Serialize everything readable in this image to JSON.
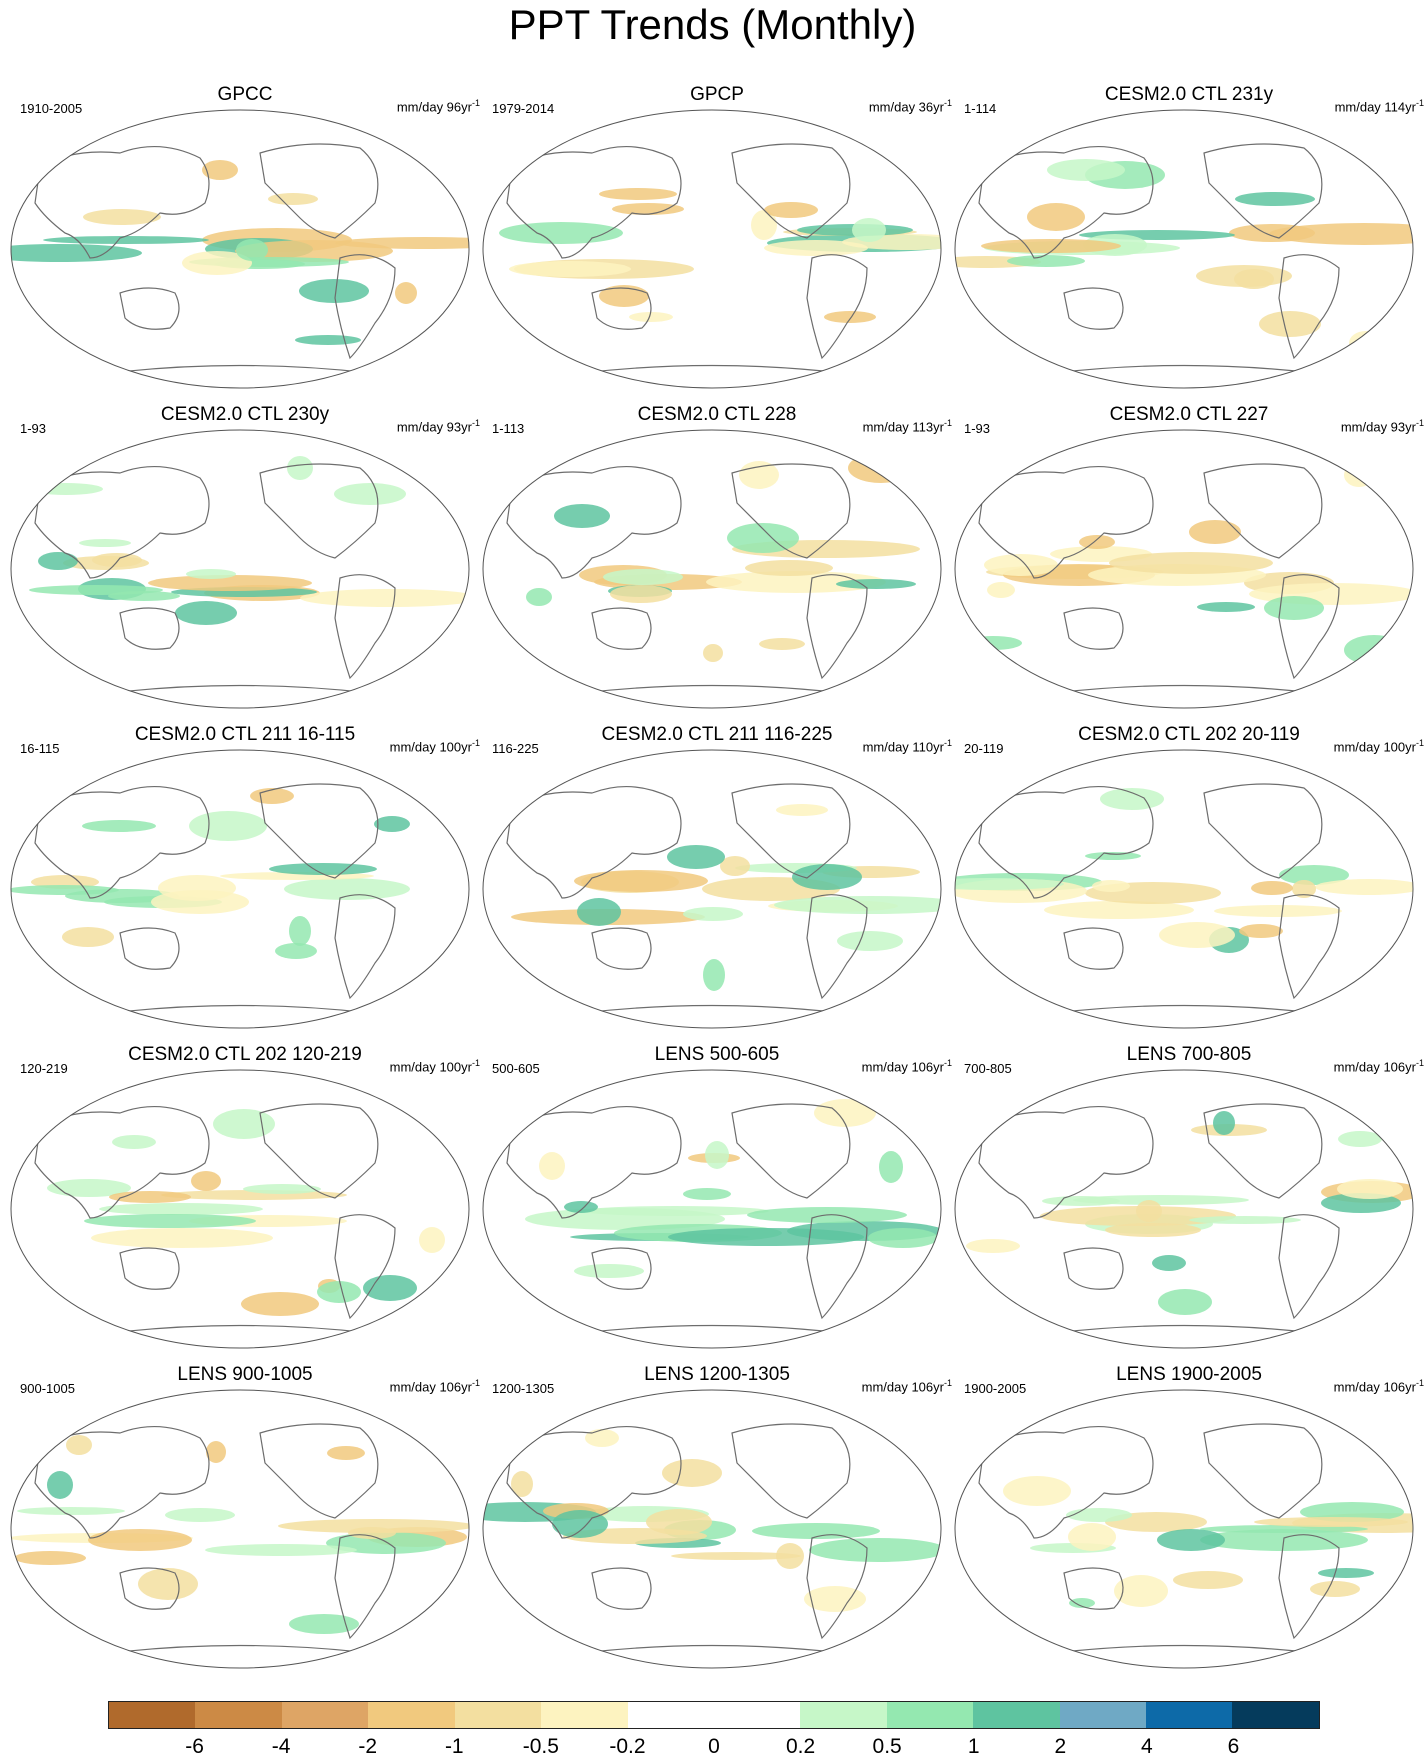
{
  "title": "PPT Trends (Monthly)",
  "units_prefix": "mm/day",
  "units_suffix": "yr",
  "units_exp": "-1",
  "panels": [
    {
      "title": "GPCC",
      "period": "1910-2005",
      "years": "96"
    },
    {
      "title": "GPCP",
      "period": "1979-2014",
      "years": "36"
    },
    {
      "title": "CESM2.0 CTL 231y",
      "period": "1-114",
      "years": "114"
    },
    {
      "title": "CESM2.0 CTL 230y",
      "period": "1-93",
      "years": "93"
    },
    {
      "title": "CESM2.0 CTL 228",
      "period": "1-113",
      "years": "113"
    },
    {
      "title": "CESM2.0 CTL 227",
      "period": "1-93",
      "years": "93"
    },
    {
      "title": "CESM2.0 CTL 211 16-115",
      "period": "16-115",
      "years": "100"
    },
    {
      "title": "CESM2.0 CTL 211 116-225",
      "period": "116-225",
      "years": "110"
    },
    {
      "title": "CESM2.0 CTL 202 20-119",
      "period": "20-119",
      "years": "100"
    },
    {
      "title": "CESM2.0 CTL 202 120-219",
      "period": "120-219",
      "years": "100"
    },
    {
      "title": "LENS 500-605",
      "period": "500-605",
      "years": "106"
    },
    {
      "title": "LENS 700-805",
      "period": "700-805",
      "years": "106"
    },
    {
      "title": "LENS 900-1005",
      "period": "900-1005",
      "years": "106"
    },
    {
      "title": "LENS 1200-1305",
      "period": "1200-1305",
      "years": "106"
    },
    {
      "title": "LENS 1900-2005",
      "period": "1900-2005",
      "years": "106"
    }
  ],
  "colorbar": {
    "colors": [
      "#b06a2c",
      "#cc8a45",
      "#dea565",
      "#f1c97e",
      "#f3dfa0",
      "#fdf3c0",
      "#ffffff",
      "#ffffff",
      "#c6f7c8",
      "#94e8b0",
      "#5ec4a0",
      "#6fa9c5",
      "#0d6aa8",
      "#053b5c"
    ],
    "labels": [
      "-6",
      "-4",
      "-2",
      "-1",
      "-0.5",
      "-0.2",
      "0",
      "0.2",
      "0.5",
      "1",
      "2",
      "4",
      "6"
    ]
  },
  "colors": {
    "land_outline": "#6d6d6d",
    "map_border": "#555555"
  }
}
